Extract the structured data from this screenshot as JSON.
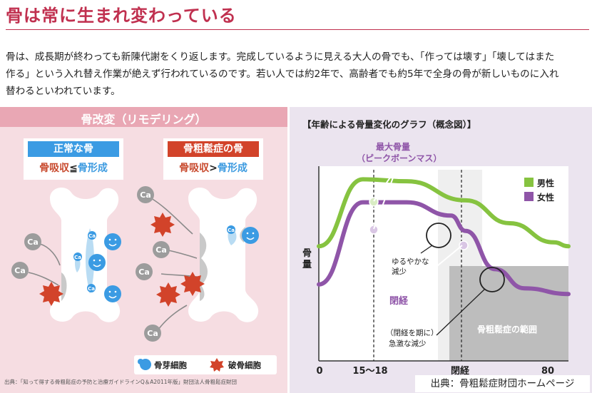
{
  "page": {
    "title": "骨は常に生まれ変わっている",
    "paragraph_lines": [
      "骨は、成長期が終わっても新陳代謝をくり返します。完成しているように見える大人の骨でも、「作っては壊す」「壊してはまた",
      "作る」という入れ替え作業が絶えず行われているのです。若い人では約2年で、高齢者でも約5年で全身の骨が新しいものに入れ",
      "替わるといわれています。"
    ]
  },
  "remodeling": {
    "heading": "骨改変（リモデリング）",
    "normal": {
      "label": "正常な骨",
      "formula_left": "骨吸収",
      "formula_op": "≦",
      "formula_right": "骨形成",
      "color": "#3b9be3"
    },
    "osteo": {
      "label": "骨粗鬆症の骨",
      "formula_left": "骨吸収",
      "formula_op": ">",
      "formula_right": "骨形成",
      "color": "#d2432a"
    },
    "ca_label": "Ca",
    "cell_ca_label": "Ca",
    "legend": {
      "osteoblast": "骨芽細胞",
      "osteoclast": "破骨細胞"
    },
    "source": "出典：「知って得する骨粗鬆症の予防と治療ガイドラインQ＆A2011年版」財団法人骨粗鬆症財団"
  },
  "chart": {
    "heading": "【年齢による骨量変化のグラフ（概念図）】",
    "peak_label_line1": "最大骨量",
    "peak_label_line2": "（ピークボーンマス）",
    "ylabel_line1": "骨",
    "ylabel_line2": "量",
    "note_gradual_line1": "ゆるやかな",
    "note_gradual_line2": "減少",
    "menopause_label": "閉経",
    "note_rapid_line1": "（閉経を期に）",
    "note_rapid_line2": "急激な減少",
    "osteoporosis_zone": "骨粗鬆症の範囲",
    "legend_male": "男性",
    "legend_female": "女性",
    "color_male": "#86c340",
    "color_female": "#8f55a8",
    "source": "出典：骨粗鬆症財団ホームページ"
  },
  "chart_data": {
    "type": "line",
    "title": "【年齢による骨量変化のグラフ（概念図）】",
    "xlabel": "",
    "ylabel": "骨量",
    "x_ticks": [
      "0",
      "15〜18",
      "閉経",
      "80"
    ],
    "series": [
      {
        "name": "男性",
        "points": [
          [
            0,
            0.6
          ],
          [
            15,
            0.95
          ],
          [
            30,
            0.94
          ],
          [
            50,
            0.84
          ],
          [
            65,
            0.72
          ],
          [
            80,
            0.62
          ],
          [
            85,
            0.6
          ]
        ]
      },
      {
        "name": "女性",
        "points": [
          [
            0,
            0.4
          ],
          [
            15,
            0.83
          ],
          [
            30,
            0.83
          ],
          [
            45,
            0.76
          ],
          [
            50,
            0.68
          ],
          [
            60,
            0.48
          ],
          [
            70,
            0.38
          ],
          [
            85,
            0.35
          ]
        ]
      }
    ],
    "annotations": [
      "最大骨量（ピークボーンマス）",
      "ゆるやかな減少",
      "閉経",
      "（閉経を期に）急激な減少",
      "骨粗鬆症の範囲"
    ],
    "legend": "top-right",
    "grid": false
  }
}
